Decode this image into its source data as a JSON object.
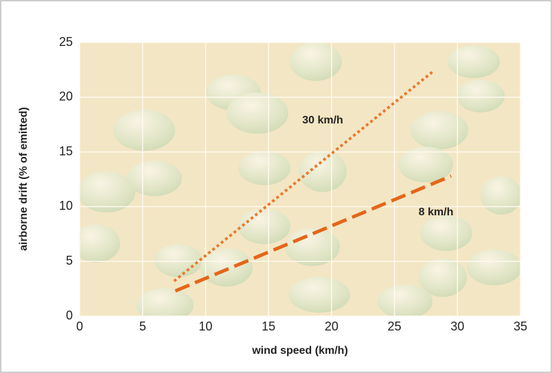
{
  "chart_data": {
    "type": "line",
    "xlabel": "wind speed (km/h)",
    "ylabel": "airborne drift (% of emitted)",
    "series": [
      {
        "name": "30 km/h",
        "color": "#e87a30",
        "style": "dotted",
        "x": [
          7.5,
          28
        ],
        "values": [
          3.2,
          22.3
        ]
      },
      {
        "name": "8 km/h",
        "color": "#e4661a",
        "style": "dashed",
        "x": [
          7.6,
          29.5
        ],
        "values": [
          2.3,
          12.8
        ]
      }
    ],
    "xlim": [
      0,
      35
    ],
    "xticks": [
      0,
      5,
      10,
      15,
      20,
      25,
      30,
      35
    ],
    "ylim": [
      0,
      25
    ],
    "yticks": [
      0,
      5,
      10,
      15,
      20,
      25
    ],
    "grid": true
  }
}
